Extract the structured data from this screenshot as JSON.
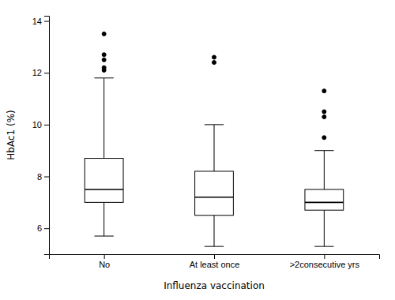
{
  "chart_data": {
    "type": "box",
    "categories": [
      "No",
      "At least once",
      ">2consecutive yrs"
    ],
    "boxes": [
      {
        "med": 7.5,
        "q1": 7.0,
        "q3": 8.7,
        "whislo": 5.7,
        "whishi": 11.8,
        "fliers": [
          12.1,
          12.2,
          12.5,
          12.7,
          13.5
        ]
      },
      {
        "med": 7.2,
        "q1": 6.5,
        "q3": 8.2,
        "whislo": 5.3,
        "whishi": 10.0,
        "fliers": [
          12.4,
          12.6
        ]
      },
      {
        "med": 7.0,
        "q1": 6.7,
        "q3": 7.5,
        "whislo": 5.3,
        "whishi": 9.0,
        "fliers": [
          9.5,
          10.3,
          10.5,
          11.3
        ]
      }
    ],
    "ylabel": "HbAc1 (%)",
    "xlabel": "Influenza vaccination",
    "ylim": [
      5.0,
      14.2
    ],
    "yticks": [
      6,
      8,
      10,
      12,
      14
    ],
    "color": "#000000"
  }
}
